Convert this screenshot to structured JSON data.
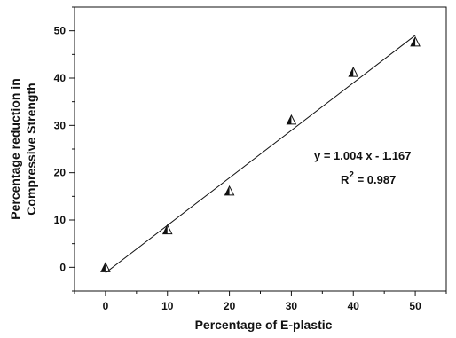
{
  "chart_data": {
    "type": "scatter",
    "title": "",
    "xlabel": "Percentage of E-plastic",
    "ylabel_lines": [
      "Percentage reduction in",
      "Compressive Strength"
    ],
    "xlim": [
      -5,
      55
    ],
    "ylim": [
      -5,
      55
    ],
    "xticks": [
      0,
      10,
      20,
      30,
      40,
      50
    ],
    "yticks": [
      0,
      10,
      20,
      30,
      40,
      50
    ],
    "grid": false,
    "series": [
      {
        "marker": "half-filled-triangle",
        "x": [
          0,
          10,
          20,
          30,
          40,
          50
        ],
        "y": [
          0,
          8,
          16.2,
          31.2,
          41.3,
          47.7
        ]
      }
    ],
    "fit_line": {
      "slope": 1.004,
      "intercept": -1.167,
      "x_range": [
        0,
        50
      ]
    },
    "annotations": {
      "equation": "y = 1.004 x - 1.167",
      "r2_prefix": "R",
      "r2_sup": "2",
      "r2_value": " = 0.987"
    },
    "colors": {
      "axis": "#111111",
      "marker": "#111111",
      "line": "#111111"
    }
  }
}
